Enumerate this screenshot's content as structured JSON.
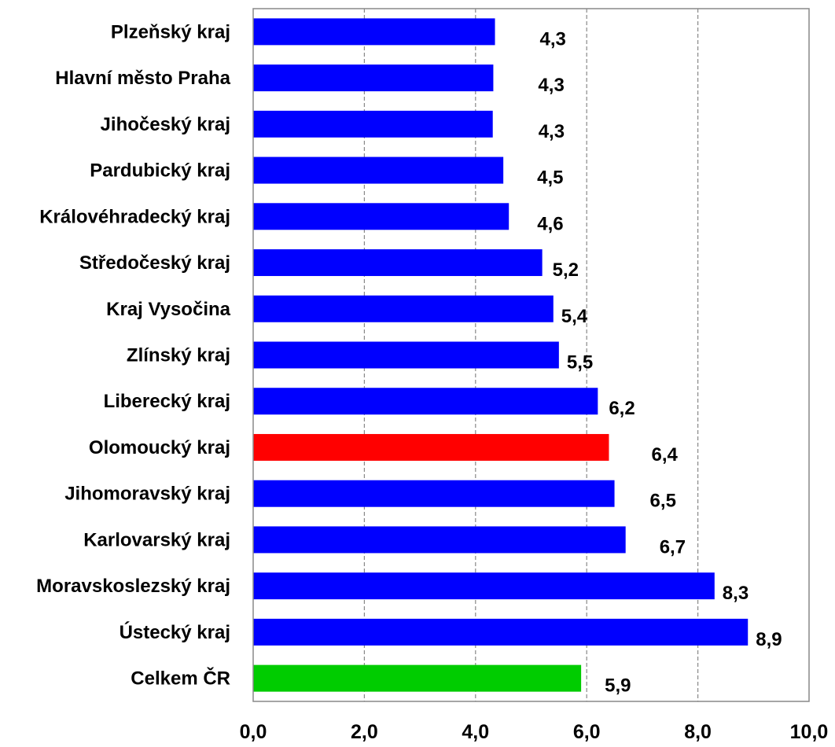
{
  "chart_data": {
    "type": "bar",
    "orientation": "horizontal",
    "categories": [
      "Plzeňský kraj",
      "Hlavní město Praha",
      "Jihočeský kraj",
      "Pardubický kraj",
      "Královéhradecký kraj",
      "Středočeský kraj",
      "Kraj Vysočina",
      "Zlínský kraj",
      "Liberecký kraj",
      "Olomoucký kraj",
      "Jihomoravský kraj",
      "Karlovarský kraj",
      "Moravskoslezský kraj",
      "Ústecký kraj",
      "Celkem ČR"
    ],
    "values": [
      4.35,
      4.32,
      4.31,
      4.5,
      4.6,
      5.2,
      5.4,
      5.5,
      6.2,
      6.4,
      6.5,
      6.7,
      8.3,
      8.9,
      5.9
    ],
    "data_labels": [
      "4,3",
      "4,3",
      "4,3",
      "4,5",
      "4,6",
      "5,2",
      "5,4",
      "5,5",
      "6,2",
      "6,4",
      "6,5",
      "6,7",
      "8,3",
      "8,9",
      "5,9"
    ],
    "bar_colors": [
      "#0000ff",
      "#0000ff",
      "#0000ff",
      "#0000ff",
      "#0000ff",
      "#0000ff",
      "#0000ff",
      "#0000ff",
      "#0000ff",
      "#ff0000",
      "#0000ff",
      "#0000ff",
      "#0000ff",
      "#0000ff",
      "#00cc00"
    ],
    "xlim": [
      0,
      10
    ],
    "x_ticks": [
      0,
      2,
      4,
      6,
      8,
      10
    ],
    "x_tick_labels": [
      "0,0",
      "2,0",
      "4,0",
      "6,0",
      "8,0",
      "10,0"
    ],
    "grid": "vertical-dashed",
    "title": "",
    "xlabel": "",
    "ylabel": "",
    "colors": {
      "default_bar": "#0000ff",
      "highlight_bar": "#ff0000",
      "total_bar": "#00cc00",
      "grid": "#888888"
    }
  }
}
